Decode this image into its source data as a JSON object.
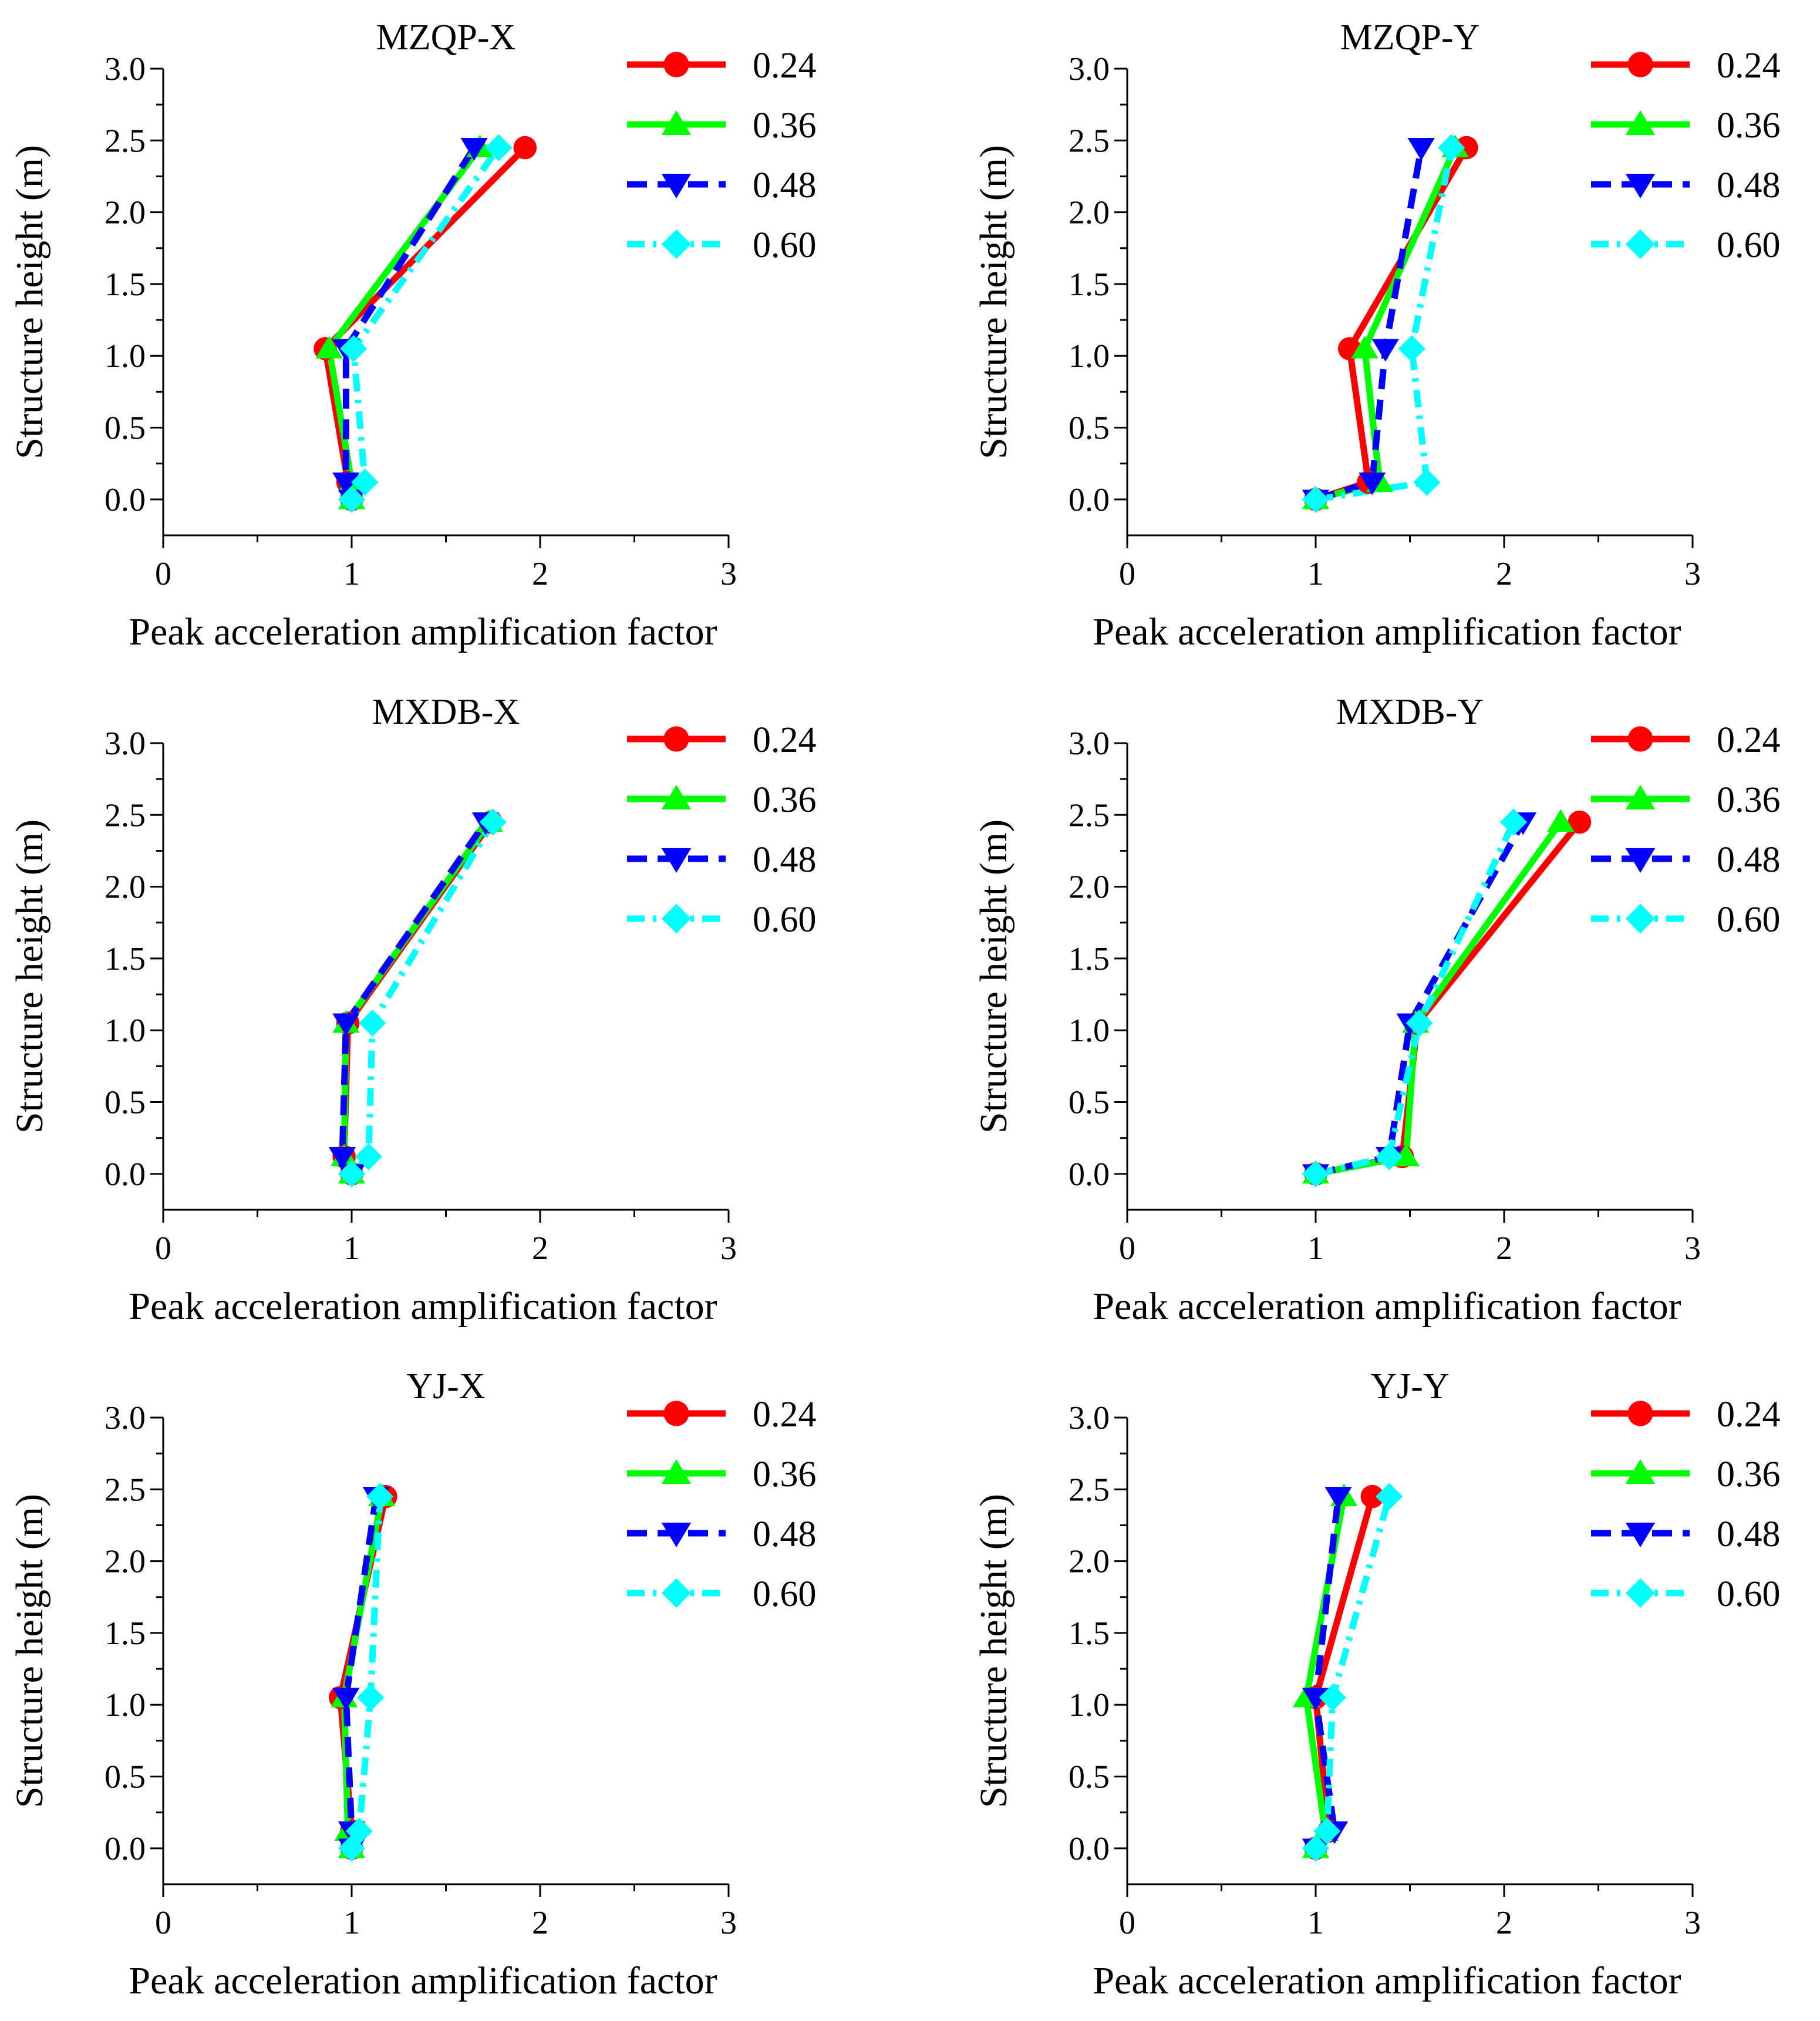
{
  "figure": {
    "series_colors": {
      "0.24": "#ff0000",
      "0.36": "#00ff00",
      "0.48": "#0000ff",
      "0.60": "#00ffff"
    }
  },
  "chart_data": [
    {
      "type": "line",
      "title": "MZQP-X",
      "xlabel": "Peak acceleration amplification factor",
      "ylabel": "Structure height (m)",
      "xlim": [
        0,
        3
      ],
      "ylim": [
        -0.25,
        3.0
      ],
      "x_ticks": [
        "0",
        "1",
        "2",
        "3"
      ],
      "y_ticks": [
        "0.0",
        "0.5",
        "1.0",
        "1.5",
        "2.0",
        "2.5",
        "3.0"
      ],
      "legend_position": "top-right",
      "series": [
        {
          "name": "0.24",
          "color": "#ff0000",
          "marker": "circle",
          "dash": "solid",
          "points": [
            [
              1.0,
              0.0
            ],
            [
              0.98,
              0.12
            ],
            [
              0.86,
              1.05
            ],
            [
              1.92,
              2.45
            ]
          ]
        },
        {
          "name": "0.36",
          "color": "#00ff00",
          "marker": "triangle-up",
          "dash": "solid",
          "points": [
            [
              1.0,
              0.0
            ],
            [
              1.0,
              0.12
            ],
            [
              0.88,
              1.05
            ],
            [
              1.68,
              2.45
            ]
          ]
        },
        {
          "name": "0.48",
          "color": "#0000ff",
          "marker": "triangle-down",
          "dash": "dashed",
          "points": [
            [
              1.0,
              0.0
            ],
            [
              0.97,
              0.12
            ],
            [
              0.97,
              1.05
            ],
            [
              1.65,
              2.45
            ]
          ]
        },
        {
          "name": "0.60",
          "color": "#00ffff",
          "marker": "diamond",
          "dash": "dashdot",
          "points": [
            [
              1.0,
              0.0
            ],
            [
              1.07,
              0.12
            ],
            [
              1.01,
              1.05
            ],
            [
              1.78,
              2.45
            ]
          ]
        }
      ]
    },
    {
      "type": "line",
      "title": "MZQP-Y",
      "xlabel": "Peak acceleration amplification factor",
      "ylabel": "Structure height (m)",
      "xlim": [
        0,
        3
      ],
      "ylim": [
        -0.25,
        3.0
      ],
      "x_ticks": [
        "0",
        "1",
        "2",
        "3"
      ],
      "y_ticks": [
        "0.0",
        "0.5",
        "1.0",
        "1.5",
        "2.0",
        "2.5",
        "3.0"
      ],
      "legend_position": "top-right",
      "series": [
        {
          "name": "0.24",
          "color": "#ff0000",
          "marker": "circle",
          "dash": "solid",
          "points": [
            [
              1.0,
              0.0
            ],
            [
              1.28,
              0.12
            ],
            [
              1.18,
              1.05
            ],
            [
              1.8,
              2.45
            ]
          ]
        },
        {
          "name": "0.36",
          "color": "#00ff00",
          "marker": "triangle-up",
          "dash": "solid",
          "points": [
            [
              1.0,
              0.0
            ],
            [
              1.34,
              0.12
            ],
            [
              1.26,
              1.05
            ],
            [
              1.74,
              2.45
            ]
          ]
        },
        {
          "name": "0.48",
          "color": "#0000ff",
          "marker": "triangle-down",
          "dash": "dashed",
          "points": [
            [
              1.0,
              0.0
            ],
            [
              1.3,
              0.12
            ],
            [
              1.37,
              1.05
            ],
            [
              1.56,
              2.45
            ]
          ]
        },
        {
          "name": "0.60",
          "color": "#00ffff",
          "marker": "diamond",
          "dash": "dashdot",
          "points": [
            [
              1.0,
              0.0
            ],
            [
              1.59,
              0.12
            ],
            [
              1.51,
              1.05
            ],
            [
              1.72,
              2.45
            ]
          ]
        }
      ]
    },
    {
      "type": "line",
      "title": "MXDB-X",
      "xlabel": "Peak acceleration amplification factor",
      "ylabel": "Structure height (m)",
      "xlim": [
        0,
        3
      ],
      "ylim": [
        -0.25,
        3.0
      ],
      "x_ticks": [
        "0",
        "1",
        "2",
        "3"
      ],
      "y_ticks": [
        "0.0",
        "0.5",
        "1.0",
        "1.5",
        "2.0",
        "2.5",
        "3.0"
      ],
      "legend_position": "top-right",
      "series": [
        {
          "name": "0.24",
          "color": "#ff0000",
          "marker": "circle",
          "dash": "solid",
          "points": [
            [
              1.0,
              0.0
            ],
            [
              0.96,
              0.12
            ],
            [
              0.98,
              1.05
            ],
            [
              1.74,
              2.45
            ]
          ]
        },
        {
          "name": "0.36",
          "color": "#00ff00",
          "marker": "triangle-up",
          "dash": "solid",
          "points": [
            [
              1.0,
              0.0
            ],
            [
              0.96,
              0.12
            ],
            [
              0.97,
              1.05
            ],
            [
              1.73,
              2.45
            ]
          ]
        },
        {
          "name": "0.48",
          "color": "#0000ff",
          "marker": "triangle-down",
          "dash": "dashed",
          "points": [
            [
              1.0,
              0.0
            ],
            [
              0.95,
              0.12
            ],
            [
              0.97,
              1.05
            ],
            [
              1.71,
              2.45
            ]
          ]
        },
        {
          "name": "0.60",
          "color": "#00ffff",
          "marker": "diamond",
          "dash": "dashdot",
          "points": [
            [
              1.0,
              0.0
            ],
            [
              1.09,
              0.12
            ],
            [
              1.11,
              1.05
            ],
            [
              1.75,
              2.45
            ]
          ]
        }
      ]
    },
    {
      "type": "line",
      "title": "MXDB-Y",
      "xlabel": "Peak acceleration amplification factor",
      "ylabel": "Structure height (m)",
      "xlim": [
        0,
        3
      ],
      "ylim": [
        -0.25,
        3.0
      ],
      "x_ticks": [
        "0",
        "1",
        "2",
        "3"
      ],
      "y_ticks": [
        "0.0",
        "0.5",
        "1.0",
        "1.5",
        "2.0",
        "2.5",
        "3.0"
      ],
      "legend_position": "top-right",
      "series": [
        {
          "name": "0.24",
          "color": "#ff0000",
          "marker": "circle",
          "dash": "solid",
          "points": [
            [
              1.0,
              0.0
            ],
            [
              1.46,
              0.12
            ],
            [
              1.54,
              1.05
            ],
            [
              2.4,
              2.45
            ]
          ]
        },
        {
          "name": "0.36",
          "color": "#00ff00",
          "marker": "triangle-up",
          "dash": "solid",
          "points": [
            [
              1.0,
              0.0
            ],
            [
              1.48,
              0.12
            ],
            [
              1.53,
              1.05
            ],
            [
              2.3,
              2.45
            ]
          ]
        },
        {
          "name": "0.48",
          "color": "#0000ff",
          "marker": "triangle-down",
          "dash": "dashed",
          "points": [
            [
              1.0,
              0.0
            ],
            [
              1.39,
              0.12
            ],
            [
              1.5,
              1.05
            ],
            [
              2.1,
              2.45
            ]
          ]
        },
        {
          "name": "0.60",
          "color": "#00ffff",
          "marker": "diamond",
          "dash": "dashdot",
          "points": [
            [
              1.0,
              0.0
            ],
            [
              1.39,
              0.12
            ],
            [
              1.55,
              1.05
            ],
            [
              2.05,
              2.45
            ]
          ]
        }
      ]
    },
    {
      "type": "line",
      "title": "YJ-X",
      "xlabel": "Peak acceleration amplification factor",
      "ylabel": "Structure height (m)",
      "xlim": [
        0,
        3
      ],
      "ylim": [
        -0.25,
        3.0
      ],
      "x_ticks": [
        "0",
        "1",
        "2",
        "3"
      ],
      "y_ticks": [
        "0.0",
        "0.5",
        "1.0",
        "1.5",
        "2.0",
        "2.5",
        "3.0"
      ],
      "legend_position": "top-right",
      "series": [
        {
          "name": "0.24",
          "color": "#ff0000",
          "marker": "circle",
          "dash": "solid",
          "points": [
            [
              1.0,
              0.0
            ],
            [
              1.0,
              0.12
            ],
            [
              0.94,
              1.05
            ],
            [
              1.18,
              2.45
            ]
          ]
        },
        {
          "name": "0.36",
          "color": "#00ff00",
          "marker": "triangle-up",
          "dash": "solid",
          "points": [
            [
              1.0,
              0.0
            ],
            [
              0.98,
              0.12
            ],
            [
              0.96,
              1.05
            ],
            [
              1.16,
              2.45
            ]
          ]
        },
        {
          "name": "0.48",
          "color": "#0000ff",
          "marker": "triangle-down",
          "dash": "dashed",
          "points": [
            [
              1.0,
              0.0
            ],
            [
              1.0,
              0.12
            ],
            [
              0.97,
              1.05
            ],
            [
              1.13,
              2.45
            ]
          ]
        },
        {
          "name": "0.60",
          "color": "#00ffff",
          "marker": "diamond",
          "dash": "dashdot",
          "points": [
            [
              1.0,
              0.0
            ],
            [
              1.04,
              0.12
            ],
            [
              1.1,
              1.05
            ],
            [
              1.15,
              2.45
            ]
          ]
        }
      ]
    },
    {
      "type": "line",
      "title": "YJ-Y",
      "xlabel": "Peak acceleration amplification factor",
      "ylabel": "Structure height (m)",
      "xlim": [
        0,
        3
      ],
      "ylim": [
        -0.25,
        3.0
      ],
      "x_ticks": [
        "0",
        "1",
        "2",
        "3"
      ],
      "y_ticks": [
        "0.0",
        "0.5",
        "1.0",
        "1.5",
        "2.0",
        "2.5",
        "3.0"
      ],
      "legend_position": "top-right",
      "series": [
        {
          "name": "0.24",
          "color": "#ff0000",
          "marker": "circle",
          "dash": "solid",
          "points": [
            [
              1.0,
              0.0
            ],
            [
              1.07,
              0.12
            ],
            [
              1.0,
              1.05
            ],
            [
              1.3,
              2.45
            ]
          ]
        },
        {
          "name": "0.36",
          "color": "#00ff00",
          "marker": "triangle-up",
          "dash": "solid",
          "points": [
            [
              1.0,
              0.0
            ],
            [
              1.05,
              0.12
            ],
            [
              0.95,
              1.05
            ],
            [
              1.15,
              2.45
            ]
          ]
        },
        {
          "name": "0.48",
          "color": "#0000ff",
          "marker": "triangle-down",
          "dash": "dashed",
          "points": [
            [
              1.0,
              0.0
            ],
            [
              1.1,
              0.12
            ],
            [
              1.0,
              1.05
            ],
            [
              1.12,
              2.45
            ]
          ]
        },
        {
          "name": "0.60",
          "color": "#00ffff",
          "marker": "diamond",
          "dash": "dashdot",
          "points": [
            [
              1.0,
              0.0
            ],
            [
              1.06,
              0.12
            ],
            [
              1.09,
              1.05
            ],
            [
              1.39,
              2.45
            ]
          ]
        }
      ]
    }
  ]
}
